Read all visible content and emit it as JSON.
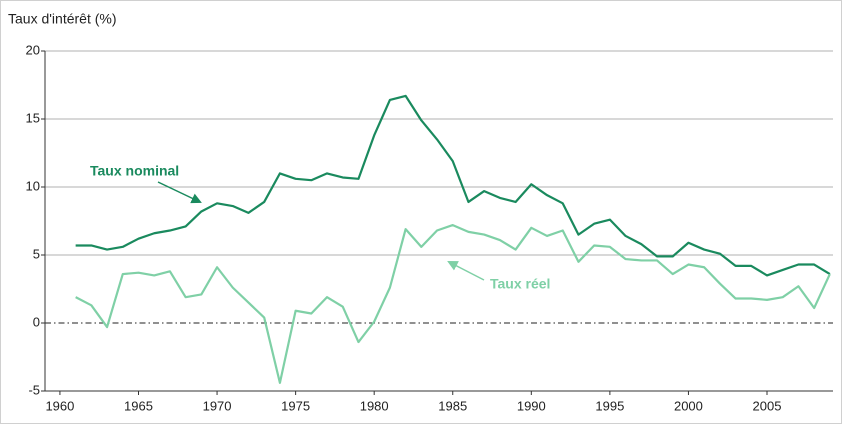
{
  "chart_data": {
    "type": "line",
    "y_label": "Taux d'intérêt (%)",
    "x": [
      1961,
      1962,
      1963,
      1964,
      1965,
      1966,
      1967,
      1968,
      1969,
      1970,
      1971,
      1972,
      1973,
      1974,
      1975,
      1976,
      1977,
      1978,
      1979,
      1980,
      1981,
      1982,
      1983,
      1984,
      1985,
      1986,
      1987,
      1988,
      1989,
      1990,
      1991,
      1992,
      1993,
      1994,
      1995,
      1996,
      1997,
      1998,
      1999,
      2000,
      2001,
      2002,
      2003,
      2004,
      2005,
      2006,
      2007,
      2008,
      2009
    ],
    "series": [
      {
        "name": "Taux nominal",
        "color": "#1a8a5e",
        "values": [
          5.7,
          5.7,
          5.4,
          5.6,
          6.2,
          6.6,
          6.8,
          7.1,
          8.2,
          8.8,
          8.6,
          8.1,
          8.9,
          11.0,
          10.6,
          10.5,
          11.0,
          10.7,
          10.6,
          13.8,
          16.4,
          16.7,
          14.9,
          13.5,
          11.9,
          8.9,
          9.7,
          9.2,
          8.9,
          10.2,
          9.4,
          8.8,
          6.5,
          7.3,
          7.6,
          6.4,
          5.8,
          4.9,
          4.9,
          5.9,
          5.4,
          5.1,
          4.2,
          4.2,
          3.5,
          3.9,
          4.3,
          4.3,
          3.6
        ]
      },
      {
        "name": "Taux réel",
        "color": "#7fd0a6",
        "values": [
          1.9,
          1.3,
          -0.3,
          3.6,
          3.7,
          3.5,
          3.8,
          1.9,
          2.1,
          4.1,
          2.6,
          1.5,
          0.4,
          -4.4,
          0.9,
          0.7,
          1.9,
          1.2,
          -1.4,
          0.1,
          2.6,
          6.9,
          5.6,
          6.8,
          7.2,
          6.7,
          6.5,
          6.1,
          5.4,
          7.0,
          6.4,
          6.8,
          4.5,
          5.7,
          5.6,
          4.7,
          4.6,
          4.6,
          3.6,
          4.3,
          4.1,
          2.9,
          1.8,
          1.8,
          1.7,
          1.9,
          2.7,
          1.1,
          3.6
        ]
      }
    ],
    "xlim": [
      1959.05,
      2009.2
    ],
    "xticks": [
      1960,
      1965,
      1970,
      1975,
      1980,
      1985,
      1990,
      1995,
      2000,
      2005
    ],
    "ylim": [
      -5,
      20
    ],
    "yticks": [
      -5,
      0,
      5,
      10,
      15,
      20
    ],
    "grid": true
  }
}
